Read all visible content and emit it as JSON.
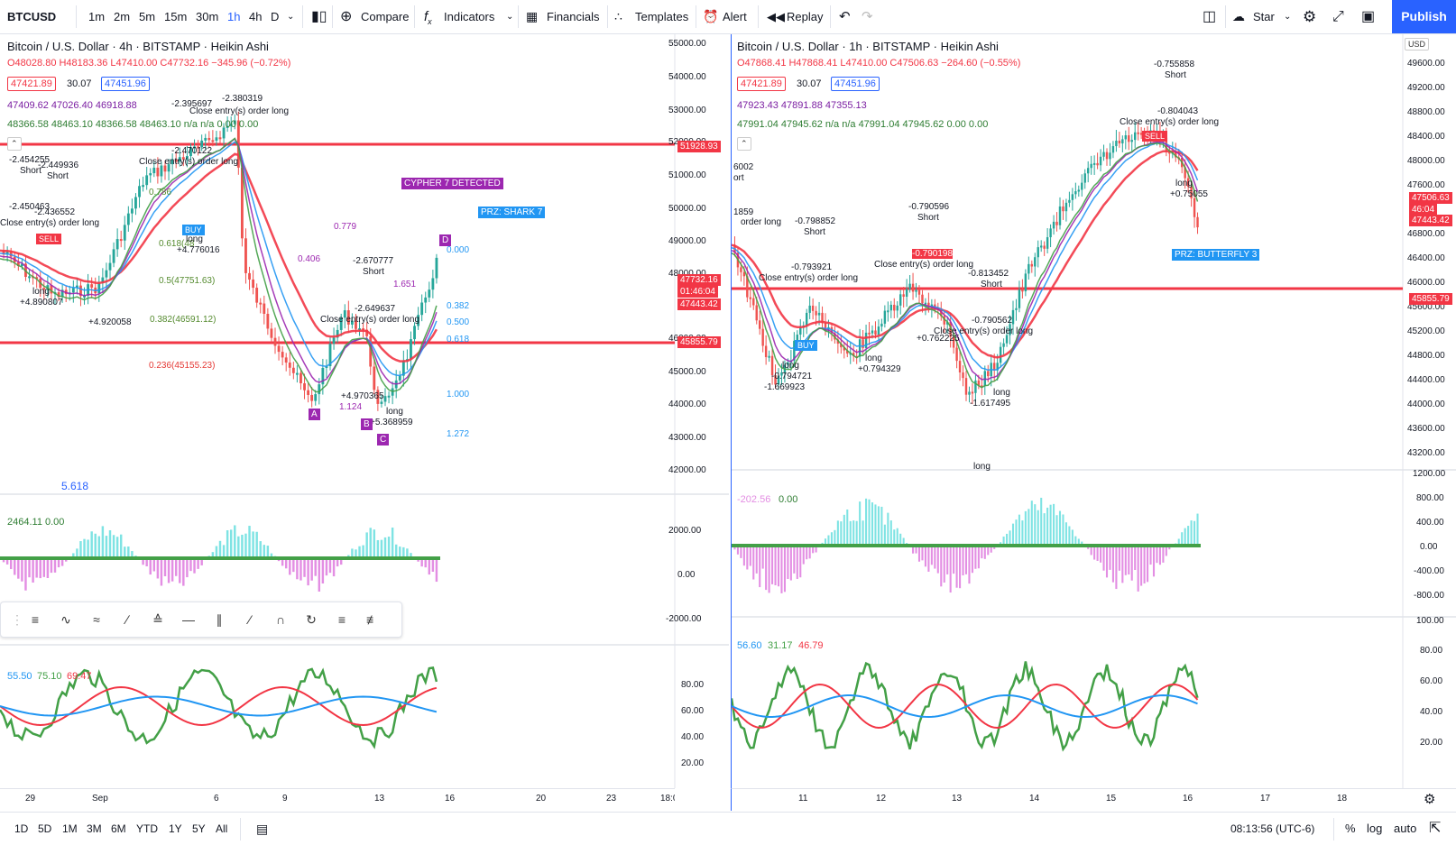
{
  "toolbar": {
    "symbol": "BTCUSD",
    "intervals": [
      "1m",
      "2m",
      "5m",
      "15m",
      "30m",
      "1h",
      "4h",
      "D"
    ],
    "active_interval": "1h",
    "compare": "Compare",
    "indicators": "Indicators",
    "financials": "Financials",
    "templates": "Templates",
    "alert": "Alert",
    "replay": "Replay",
    "star": "Star",
    "publish": "Publish"
  },
  "left_chart": {
    "title": "Bitcoin / U.S. Dollar · 4h · BITSTAMP · Heikin Ashi",
    "ohlc": "O48028.80 H48183.36 L47410.00 C47732.16 −345.96 (−0.72%)",
    "bid": "47421.89",
    "spread": "30.07",
    "ask": "47451.96",
    "ind1": "47409.62 47026.40 46918.88",
    "ind2": "48366.58 48463.10 48366.58 48463.10 n/a n/a 0.00 0.00",
    "price_axis": [
      "55000.00",
      "54000.00",
      "53000.00",
      "52000.00",
      "51000.00",
      "50000.00",
      "49000.00",
      "48000.00",
      "47000.00",
      "46000.00",
      "45000.00",
      "44000.00",
      "43000.00",
      "42000.00"
    ],
    "red_line_top": "51928.93",
    "red_line_bottom": "45855.79",
    "last_price": "47732.16",
    "countdown": "01:46:04",
    "bid_tag": "47443.42",
    "cypher_label": "CYPHER 7 DETECTED",
    "prz_label": "PRZ: SHARK 7",
    "fib_levels": [
      "0.000",
      "0.382",
      "0.500",
      "0.618",
      "1.000",
      "1.272"
    ],
    "fib_retr": [
      "0.786",
      "0.618(48",
      "0.5(47751.63)",
      "0.382(46591.12)",
      "0.236(45155.23)"
    ],
    "points": [
      "A",
      "B",
      "C",
      "D"
    ],
    "time_axis": [
      "29",
      "Sep",
      "6",
      "9",
      "13",
      "16",
      "20",
      "23",
      "18:0"
    ],
    "cursor_val": "5.618",
    "osc_values": "2464.11 0.00",
    "osc_axis": [
      "2000.00",
      "0.00",
      "-2000.00"
    ],
    "rsi_values": [
      "55.50",
      "75.10",
      "69.47"
    ],
    "rsi_axis": [
      "80.00",
      "60.00",
      "40.00",
      "20.00"
    ],
    "annotations": [
      "-2.454255",
      "Short",
      "-2.449936",
      "Short",
      "-2.450463",
      "-2.436552",
      "Close entry(s) order long",
      "long",
      "+4.890807",
      "+4.920058",
      "-2.395697",
      "-2.380319",
      "Close entry(s) order long",
      "-2.470122",
      "Close entry(s) order long",
      "long",
      "+4.776016",
      "-2.670777",
      "Short",
      "-2.649637",
      "Close entry(s) order long",
      "+4.970365",
      "long",
      "+5.368959",
      "0.779",
      "0.406",
      "1.651",
      "1.124",
      "SELL",
      "BUY"
    ]
  },
  "right_chart": {
    "title": "Bitcoin / U.S. Dollar · 1h · BITSTAMP · Heikin Ashi",
    "ohlc": "O47868.41 H47868.41 L47410.00 C47506.63 −264.60 (−0.55%)",
    "bid": "47421.89",
    "spread": "30.07",
    "ask": "47451.96",
    "ind1": "47923.43 47891.88 47355.13",
    "ind2": "47991.04 47945.62 n/a n/a 47991.04 47945.62 0.00 0.00",
    "currency": "USD",
    "price_axis": [
      "49600.00",
      "49200.00",
      "48800.00",
      "48400.00",
      "48000.00",
      "47600.00",
      "46800.00",
      "46400.00",
      "46000.00",
      "45600.00",
      "45200.00",
      "44800.00",
      "44400.00",
      "44000.00",
      "43600.00",
      "43200.00"
    ],
    "last_price": "47506.63",
    "countdown": "46:04",
    "bid_tag": "47443.42",
    "red_line": "45855.79",
    "prz_label": "PRZ: BUTTERFLY 3",
    "time_axis": [
      "11",
      "12",
      "13",
      "14",
      "15",
      "16",
      "17",
      "18"
    ],
    "osc_values": [
      "-202.56",
      "0.00"
    ],
    "osc_axis": [
      "1200.00",
      "800.00",
      "400.00",
      "0.00",
      "-400.00",
      "-800.00"
    ],
    "rsi_values": [
      "56.60",
      "31.17",
      "46.79"
    ],
    "rsi_axis": [
      "100.00",
      "80.00",
      "60.00",
      "40.00",
      "20.00"
    ],
    "annotations": [
      "-0.755858",
      "Short",
      "-0.804043",
      "Close entry(s) order long",
      "6002",
      "ort",
      "1859",
      "order long",
      "-0.798852",
      "Short",
      "-0.793921",
      "Close entry(s) order long",
      "-0.790596",
      "Short",
      "-0.790198",
      "Close entry(s) order long",
      "-0.813452",
      "Short",
      "-0.790562",
      "Close entry(s) order long",
      "long",
      "-0.794721",
      "-1.669923",
      "long",
      "+0.794329",
      "+0.762225",
      "long",
      "-1.617495",
      "long",
      "long",
      "+0.75055",
      "SELL",
      "BUY"
    ]
  },
  "bottombar": {
    "ranges": [
      "1D",
      "5D",
      "1M",
      "3M",
      "6M",
      "YTD",
      "1Y",
      "5Y",
      "All"
    ],
    "clock": "08:13:56 (UTC-6)",
    "percent": "%",
    "log": "log",
    "auto": "auto"
  },
  "colors": {
    "accent": "#2962ff",
    "red": "#f23645",
    "green": "#26a69a",
    "purple": "#9c27b0",
    "cyan": "#7ee3e3",
    "magenta": "#e38ee3"
  }
}
